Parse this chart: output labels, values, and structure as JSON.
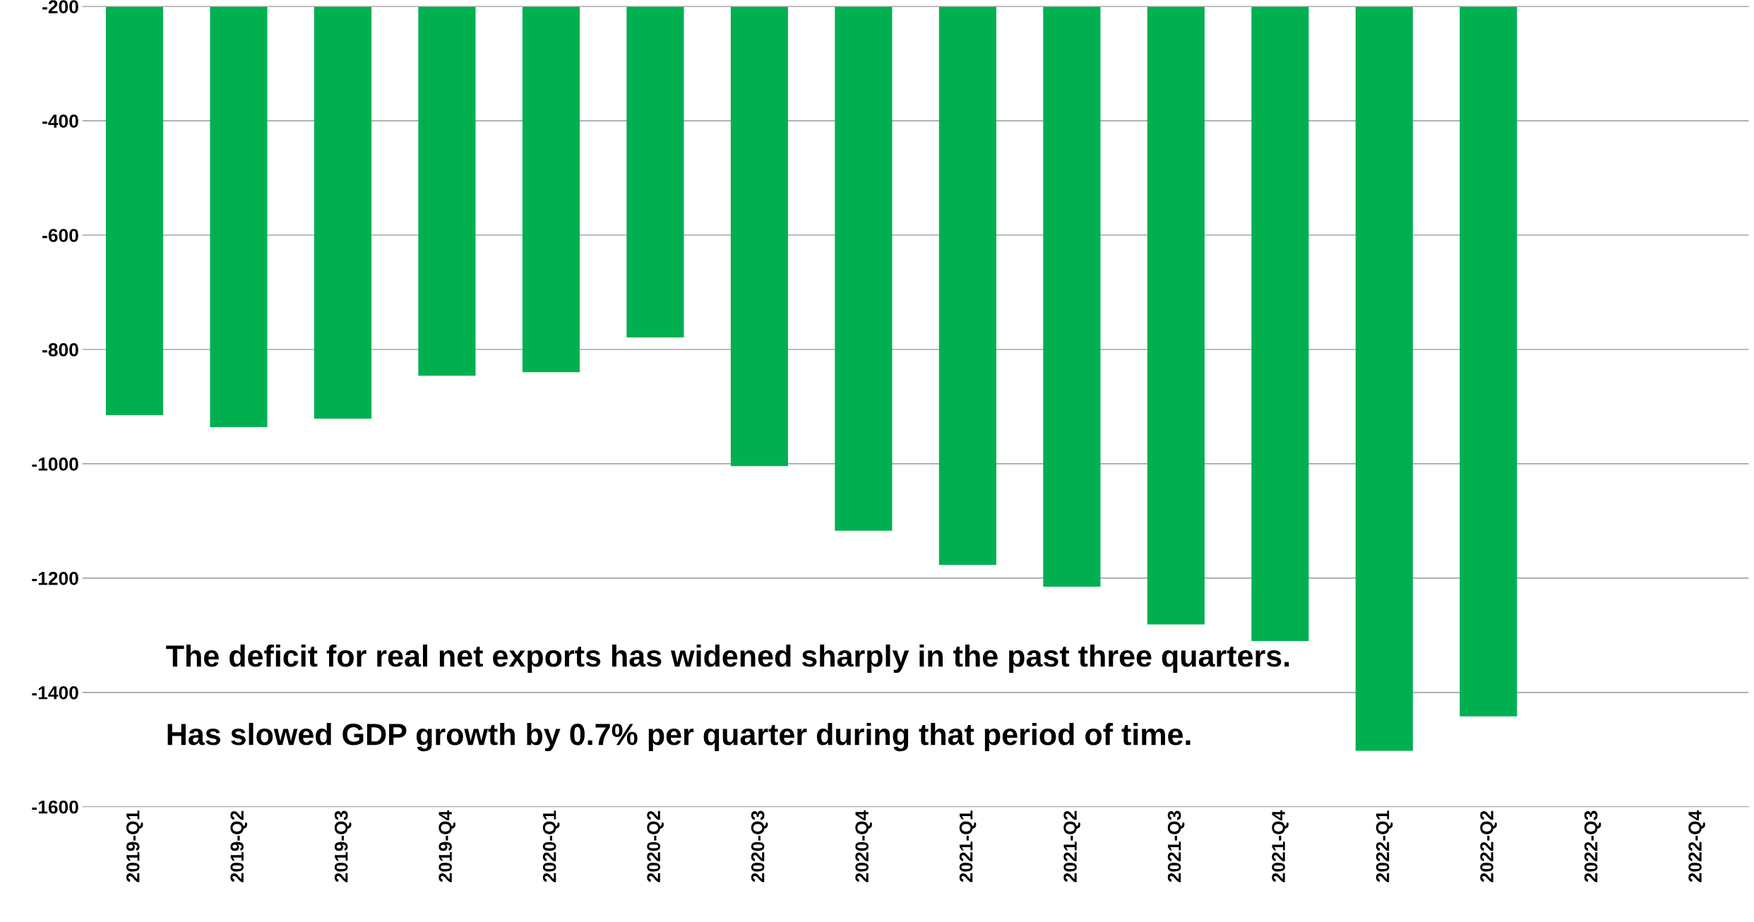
{
  "chart_data": {
    "type": "bar",
    "categories": [
      "2019-Q1",
      "2019-Q2",
      "2019-Q3",
      "2019-Q4",
      "2020-Q1",
      "2020-Q2",
      "2020-Q3",
      "2020-Q4",
      "2021-Q1",
      "2021-Q2",
      "2021-Q3",
      "2021-Q4",
      "2022-Q1",
      "2022-Q2",
      "2022-Q3",
      "2022-Q4"
    ],
    "values": [
      -915,
      -936,
      -921,
      -846,
      -840,
      -779,
      -1004,
      -1117,
      -1177,
      -1215,
      -1281,
      -1310,
      -1502,
      -1442,
      null,
      null
    ],
    "color": "#00b050",
    "ylim": [
      -1600,
      -200
    ],
    "yticks": [
      -1600,
      -1400,
      -1200,
      -1000,
      -800,
      -600,
      -400,
      -200
    ],
    "grid": "y",
    "legend": false,
    "annotations": [
      "The deficit for real net exports has widened sharply in the past three quarters.",
      "Has slowed GDP growth by 0.7% per quarter during that period of time."
    ]
  }
}
